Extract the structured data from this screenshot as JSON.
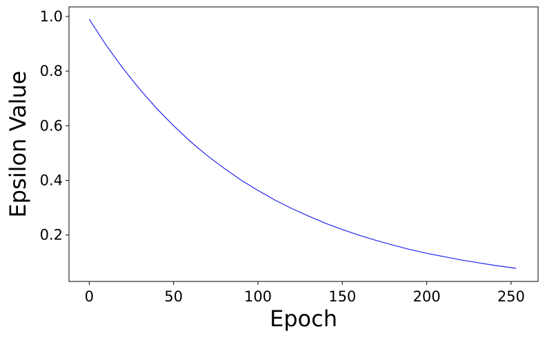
{
  "chart_data": {
    "type": "line",
    "title": "",
    "xlabel": "Epoch",
    "ylabel": "Epsilon Value",
    "xlim": [
      -12,
      266
    ],
    "ylim": [
      0.03,
      1.035
    ],
    "xticks": [
      0,
      50,
      100,
      150,
      200,
      250
    ],
    "yticks": [
      0.2,
      0.4,
      0.6,
      0.8,
      1.0
    ],
    "xtick_labels": [
      "0",
      "50",
      "100",
      "150",
      "200",
      "250"
    ],
    "ytick_labels": [
      "0.2",
      "0.4",
      "0.6",
      "0.8",
      "1.0"
    ],
    "grid": false,
    "legend": "none",
    "series": [
      {
        "color": "#2222ee",
        "x": [
          0,
          10,
          20,
          30,
          40,
          50,
          60,
          70,
          80,
          90,
          100,
          110,
          120,
          130,
          140,
          150,
          160,
          170,
          180,
          190,
          200,
          210,
          220,
          230,
          240,
          253
        ],
        "y": [
          0.99,
          0.895,
          0.81,
          0.733,
          0.663,
          0.6,
          0.542,
          0.49,
          0.444,
          0.401,
          0.363,
          0.328,
          0.297,
          0.269,
          0.243,
          0.22,
          0.199,
          0.18,
          0.163,
          0.147,
          0.133,
          0.121,
          0.109,
          0.099,
          0.089,
          0.078
        ]
      }
    ]
  }
}
